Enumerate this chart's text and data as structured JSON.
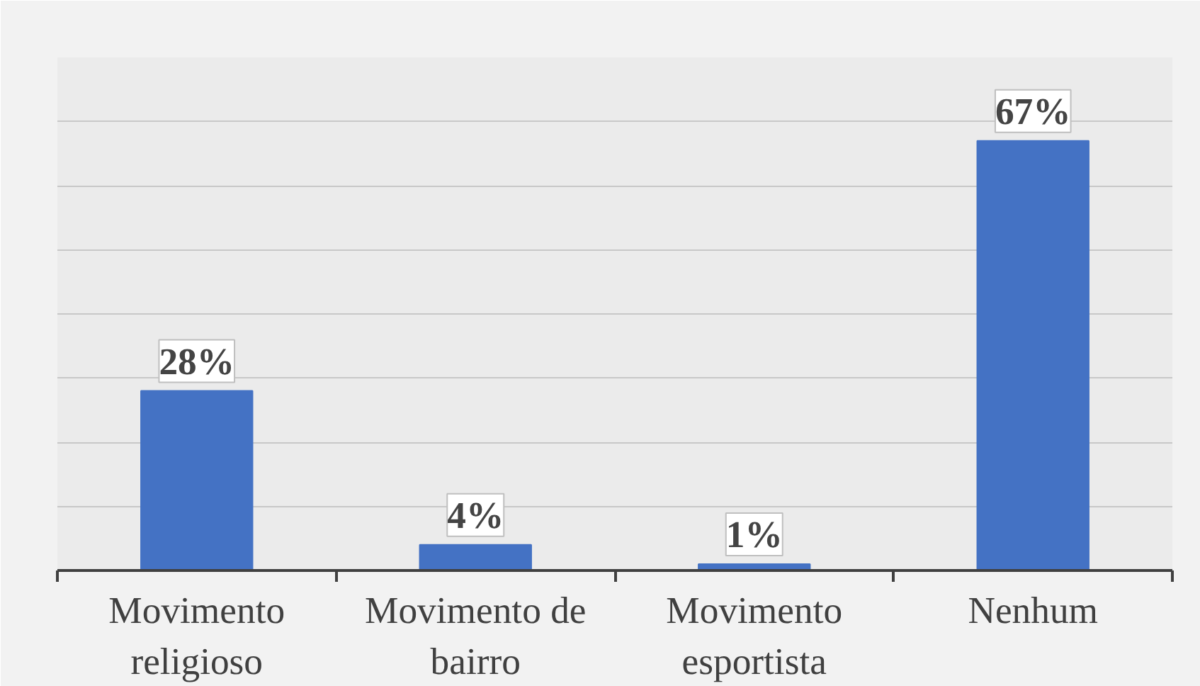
{
  "chart_data": {
    "type": "bar",
    "categories": [
      "Movimento religioso",
      "Movimento de bairro",
      "Movimento esportista",
      "Nenhum"
    ],
    "values": [
      28,
      4,
      1,
      67
    ],
    "color": "#4472c4",
    "value_labels": [
      "28%",
      "4%",
      "1%",
      "67%"
    ],
    "ylim": [
      0,
      80
    ],
    "yticks": [
      {
        "value": 0,
        "label": null
      },
      {
        "value": 10,
        "label": null
      },
      {
        "value": 20,
        "label": null
      },
      {
        "value": 30,
        "label": null
      },
      {
        "value": 40,
        "label": null
      },
      {
        "value": 50,
        "label": null
      },
      {
        "value": 60,
        "label": null
      },
      {
        "value": 70,
        "label": null
      },
      {
        "value": 80,
        "label": null
      }
    ],
    "grid": "y",
    "tick_labels": "x"
  }
}
